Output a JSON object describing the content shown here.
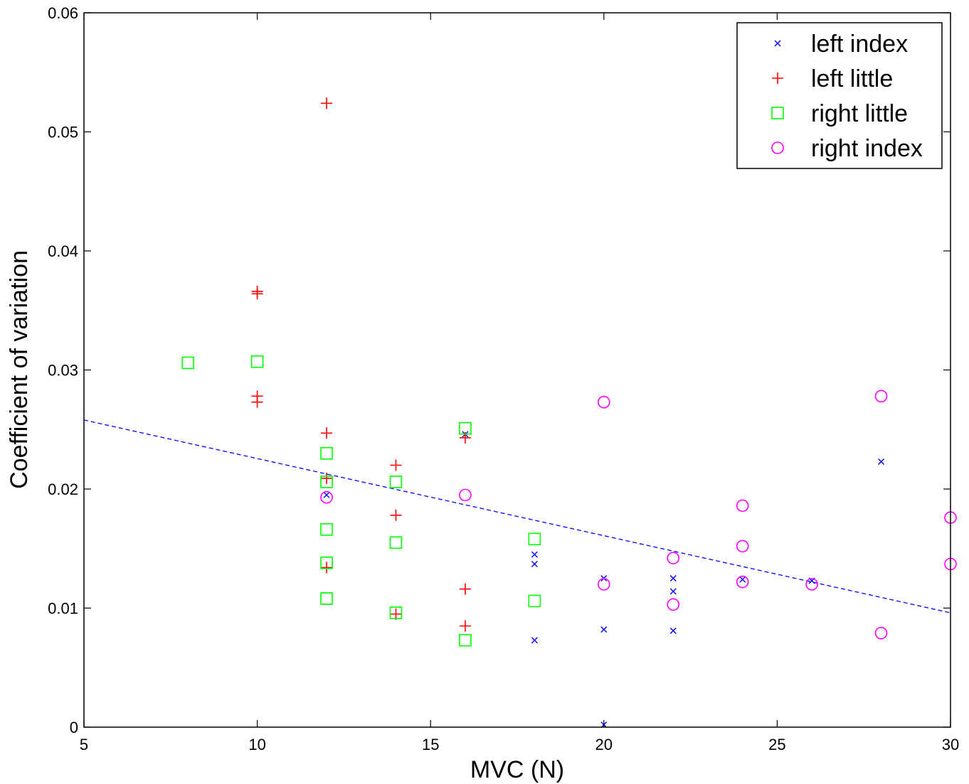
{
  "chart_data": {
    "type": "scatter",
    "title": "",
    "xlabel": "MVC (N)",
    "ylabel": "Coefficient of variation",
    "xlim": [
      5,
      30
    ],
    "ylim": [
      0,
      0.06
    ],
    "xticks": [
      5,
      10,
      15,
      20,
      25,
      30
    ],
    "yticks": [
      0,
      0.01,
      0.02,
      0.03,
      0.04,
      0.05,
      0.06
    ],
    "ytick_labels": [
      "0",
      "0.01",
      "0.02",
      "0.03",
      "0.04",
      "0.05",
      "0.06"
    ],
    "grid": false,
    "legend_position": "top-right",
    "series": [
      {
        "name": "left index",
        "marker": "x",
        "color": "#0000ff",
        "points": [
          [
            12,
            0.0195
          ],
          [
            16,
            0.0246
          ],
          [
            18,
            0.0145
          ],
          [
            18,
            0.0137
          ],
          [
            18,
            0.0073
          ],
          [
            20,
            0.0125
          ],
          [
            20,
            0.0082
          ],
          [
            20,
            0.0002
          ],
          [
            22,
            0.0125
          ],
          [
            22,
            0.0114
          ],
          [
            22,
            0.0081
          ],
          [
            24,
            0.0124
          ],
          [
            26,
            0.0123
          ],
          [
            28,
            0.0223
          ]
        ]
      },
      {
        "name": "left little",
        "marker": "+",
        "color": "#ff0000",
        "points": [
          [
            10,
            0.0366
          ],
          [
            10,
            0.0364
          ],
          [
            10,
            0.0278
          ],
          [
            10,
            0.0273
          ],
          [
            12,
            0.0524
          ],
          [
            12,
            0.0247
          ],
          [
            12,
            0.0209
          ],
          [
            12,
            0.0134
          ],
          [
            14,
            0.022
          ],
          [
            14,
            0.0178
          ],
          [
            14,
            0.0095
          ],
          [
            16,
            0.0243
          ],
          [
            16,
            0.0116
          ],
          [
            16,
            0.0085
          ]
        ]
      },
      {
        "name": "right little",
        "marker": "square",
        "color": "#00ff00",
        "points": [
          [
            8,
            0.0306
          ],
          [
            10,
            0.0307
          ],
          [
            12,
            0.023
          ],
          [
            12,
            0.0206
          ],
          [
            12,
            0.0166
          ],
          [
            12,
            0.0138
          ],
          [
            12,
            0.0108
          ],
          [
            14,
            0.0206
          ],
          [
            14,
            0.0155
          ],
          [
            14,
            0.0096
          ],
          [
            16,
            0.0251
          ],
          [
            16,
            0.0073
          ],
          [
            18,
            0.0158
          ],
          [
            18,
            0.0106
          ]
        ]
      },
      {
        "name": "right index",
        "marker": "circle",
        "color": "#ff00ff",
        "points": [
          [
            12,
            0.0193
          ],
          [
            16,
            0.0195
          ],
          [
            20,
            0.0273
          ],
          [
            20,
            0.012
          ],
          [
            22,
            0.0142
          ],
          [
            22,
            0.0103
          ],
          [
            24,
            0.0186
          ],
          [
            24,
            0.0152
          ],
          [
            24,
            0.0122
          ],
          [
            26,
            0.012
          ],
          [
            28,
            0.0278
          ],
          [
            28,
            0.0079
          ],
          [
            30,
            0.0176
          ],
          [
            30,
            0.0137
          ]
        ]
      }
    ],
    "fit_line": {
      "style": "dashed",
      "color": "#0000ff",
      "from": [
        5,
        0.0258
      ],
      "to": [
        30,
        0.0096
      ]
    }
  }
}
